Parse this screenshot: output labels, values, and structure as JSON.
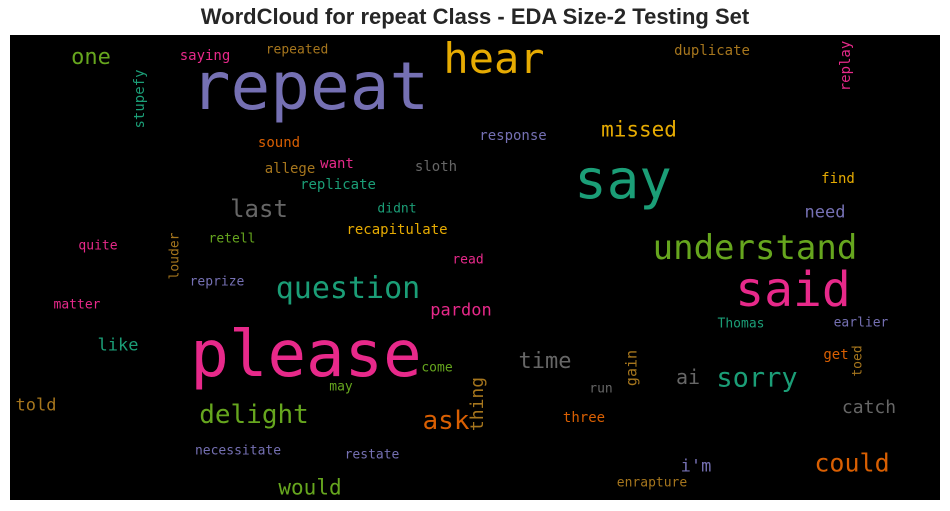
{
  "chart_data": {
    "type": "wordcloud",
    "title": "WordCloud for repeat Class - EDA Size-2 Testing Set",
    "words": [
      {
        "text": "repeat",
        "color": "#7570b3"
      },
      {
        "text": "please",
        "color": "#e7298a"
      },
      {
        "text": "say",
        "color": "#1b9e77"
      },
      {
        "text": "said",
        "color": "#e7298a"
      },
      {
        "text": "hear",
        "color": "#e6ab02"
      },
      {
        "text": "understand",
        "color": "#66a61e"
      },
      {
        "text": "question",
        "color": "#1b9e77"
      },
      {
        "text": "sorry",
        "color": "#1b9e77"
      },
      {
        "text": "delight",
        "color": "#66a61e"
      },
      {
        "text": "could",
        "color": "#d95f02"
      },
      {
        "text": "ask",
        "color": "#d95f02"
      },
      {
        "text": "last",
        "color": "#666666"
      },
      {
        "text": "missed",
        "color": "#e6ab02"
      },
      {
        "text": "time",
        "color": "#666666"
      },
      {
        "text": "would",
        "color": "#66a61e"
      },
      {
        "text": "one",
        "color": "#66a61e"
      },
      {
        "text": "ai",
        "color": "#666666"
      },
      {
        "text": "catch",
        "color": "#666666"
      },
      {
        "text": "thing",
        "color": "#a6761d"
      },
      {
        "text": "pardon",
        "color": "#e7298a"
      },
      {
        "text": "i'm",
        "color": "#7570b3"
      },
      {
        "text": "need",
        "color": "#7570b3"
      },
      {
        "text": "told",
        "color": "#a6761d"
      },
      {
        "text": "like",
        "color": "#1b9e77"
      },
      {
        "text": "gain",
        "color": "#a6761d"
      },
      {
        "text": "saying",
        "color": "#e7298a"
      },
      {
        "text": "repeated",
        "color": "#a6761d"
      },
      {
        "text": "duplicate",
        "color": "#a6761d"
      },
      {
        "text": "replay",
        "color": "#e7298a"
      },
      {
        "text": "stupefy",
        "color": "#1b9e77"
      },
      {
        "text": "response",
        "color": "#7570b3"
      },
      {
        "text": "sound",
        "color": "#d95f02"
      },
      {
        "text": "allege",
        "color": "#a6761d"
      },
      {
        "text": "want",
        "color": "#e7298a"
      },
      {
        "text": "sloth",
        "color": "#666666"
      },
      {
        "text": "replicate",
        "color": "#1b9e77"
      },
      {
        "text": "find",
        "color": "#e6ab02"
      },
      {
        "text": "didnt",
        "color": "#1b9e77"
      },
      {
        "text": "retell",
        "color": "#66a61e"
      },
      {
        "text": "recapitulate",
        "color": "#e6ab02"
      },
      {
        "text": "quite",
        "color": "#e7298a"
      },
      {
        "text": "louder",
        "color": "#a6761d"
      },
      {
        "text": "read",
        "color": "#e7298a"
      },
      {
        "text": "reprize",
        "color": "#7570b3"
      },
      {
        "text": "matter",
        "color": "#e7298a"
      },
      {
        "text": "Thomas",
        "color": "#1b9e77"
      },
      {
        "text": "earlier",
        "color": "#7570b3"
      },
      {
        "text": "get",
        "color": "#d95f02"
      },
      {
        "text": "toed",
        "color": "#a6761d"
      },
      {
        "text": "come",
        "color": "#66a61e"
      },
      {
        "text": "may",
        "color": "#66a61e"
      },
      {
        "text": "run",
        "color": "#666666"
      },
      {
        "text": "three",
        "color": "#d95f02"
      },
      {
        "text": "necessitate",
        "color": "#7570b3"
      },
      {
        "text": "restate",
        "color": "#7570b3"
      },
      {
        "text": "enrapture",
        "color": "#a6761d"
      }
    ]
  }
}
